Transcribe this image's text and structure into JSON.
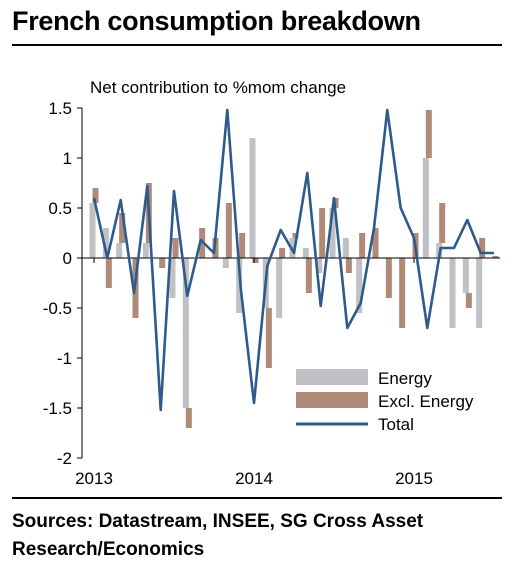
{
  "header": {
    "title": "French consumption breakdown"
  },
  "footer": {
    "source": "Sources: Datastream, INSEE, SG Cross Asset Research/Economics"
  },
  "chart_data": {
    "type": "bar",
    "title": "French consumption breakdown",
    "ylabel": "Net contribution to %mom change",
    "ylim": [
      -2,
      1.5
    ],
    "yticks": [
      1.5,
      1,
      0.5,
      0,
      -0.5,
      -1,
      -1.5,
      -2
    ],
    "ytick_labels": [
      "1.5",
      "1",
      "0.5",
      "0",
      "-0.5",
      "-1",
      "-1.5",
      "-2"
    ],
    "xtick_labels": [
      {
        "label": "2013",
        "month_index": 0
      },
      {
        "label": "2014",
        "month_index": 12
      },
      {
        "label": "2015",
        "month_index": 24
      }
    ],
    "x": [
      "2013-01",
      "2013-02",
      "2013-03",
      "2013-04",
      "2013-05",
      "2013-06",
      "2013-07",
      "2013-08",
      "2013-09",
      "2013-10",
      "2013-11",
      "2013-12",
      "2014-01",
      "2014-02",
      "2014-03",
      "2014-04",
      "2014-05",
      "2014-06",
      "2014-07",
      "2014-08",
      "2014-09",
      "2014-10",
      "2014-11",
      "2014-12",
      "2015-01",
      "2015-02",
      "2015-03",
      "2015-04",
      "2015-05",
      "2015-06",
      "2015-07"
    ],
    "stacked": true,
    "legend_position": "bottom-right",
    "colors": {
      "energy": "#c0c1c6",
      "excl_energy": "#b08a78",
      "total": "#2f5a8c"
    },
    "series": [
      {
        "name": "Energy",
        "kind": "bar",
        "values": [
          0.55,
          0.3,
          0.15,
          0.0,
          0.15,
          0.0,
          -0.4,
          -1.5,
          0.0,
          0.0,
          -0.1,
          -0.55,
          1.2,
          -0.5,
          -0.6,
          0.2,
          0.1,
          -0.15,
          0.5,
          0.2,
          -0.55,
          0.0,
          0.0,
          0.0,
          0.0,
          1.0,
          0.15,
          -0.7,
          -0.35,
          -0.7,
          0.0
        ]
      },
      {
        "name": "Excl. Energy",
        "kind": "bar",
        "values": [
          0.15,
          -0.3,
          0.3,
          -0.6,
          0.6,
          -0.1,
          0.2,
          -0.2,
          0.3,
          0.2,
          0.55,
          0.25,
          -0.05,
          -0.6,
          0.1,
          0.05,
          -0.35,
          0.5,
          0.1,
          -0.15,
          0.25,
          0.3,
          -0.4,
          -0.7,
          0.25,
          0.48,
          0.4,
          0.0,
          -0.15,
          0.2,
          0.02
        ]
      },
      {
        "name": "Total",
        "kind": "line",
        "values": [
          0.6,
          0.0,
          0.58,
          -0.35,
          0.72,
          -1.52,
          0.67,
          -0.38,
          0.18,
          0.05,
          1.48,
          -0.3,
          -1.45,
          -0.08,
          0.28,
          0.05,
          0.85,
          -0.48,
          0.6,
          -0.7,
          -0.45,
          0.3,
          1.48,
          0.5,
          0.2,
          -0.7,
          0.1,
          0.1,
          0.38,
          0.05,
          0.05
        ]
      }
    ]
  }
}
